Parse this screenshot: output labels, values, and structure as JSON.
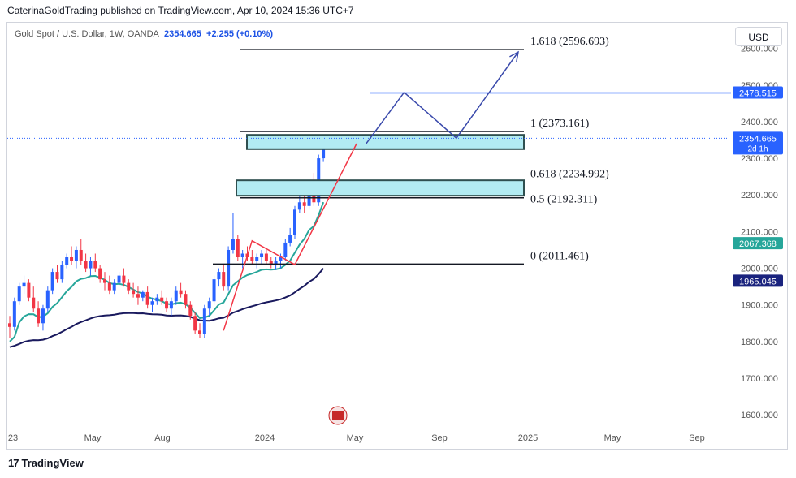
{
  "header": {
    "publisher_line": "CaterinaGoldTrading published on TradingView.com, Apr 10, 2024 15:36 UTC+7"
  },
  "legend": {
    "symbol": "Gold Spot / U.S. Dollar, 1W, OANDA",
    "price": "2354.665",
    "change": "+2.255 (+0.10%)"
  },
  "currency_button": "USD",
  "footer": {
    "brand": "TradingView",
    "logo_glyph": "17"
  },
  "colors": {
    "up": "#2962ff",
    "down": "#f23645",
    "ema_fast": "#26a69a",
    "ema_slow": "#1a1a5e",
    "fib_line": "#131722",
    "zone_fill": "#b2ebf2",
    "zone_border": "#2f4f4f",
    "projection": "#3949ab",
    "blue_level": "#2962ff",
    "impulse": "#f23645"
  },
  "chart_data": {
    "type": "candlestick",
    "y_axis": {
      "ticks": [
        1600,
        1700,
        1800,
        1900,
        2000,
        2100,
        2200,
        2300,
        2400,
        2500,
        2600
      ],
      "ylim": [
        1565,
        2670
      ],
      "tick_decimals": 3
    },
    "x_axis": {
      "labels": [
        "23",
        "May",
        "Aug",
        "2024",
        "May",
        "Sep",
        "2025",
        "May",
        "Sep"
      ]
    },
    "price_labels": [
      {
        "text": "2478.515",
        "value": 2478.515,
        "style": "blue"
      },
      {
        "text": "2354.665",
        "sub": "2d 1h",
        "value": 2354.665,
        "style": "blue"
      },
      {
        "text": "2067.368",
        "value": 2067.368,
        "style": "green"
      },
      {
        "text": "1965.045",
        "value": 1965.045,
        "style": "navy"
      }
    ],
    "fib_levels": [
      {
        "label": "1.618 (2596.693)",
        "value": 2596.693
      },
      {
        "label": "1 (2373.161)",
        "value": 2373.161
      },
      {
        "label": "0.618 (2234.992)",
        "value": 2234.992
      },
      {
        "label": "0.5 (2192.311)",
        "value": 2192.311
      },
      {
        "label": "0 (2011.461)",
        "value": 2011.461
      }
    ],
    "zones": [
      {
        "top": 2364,
        "bottom": 2325
      },
      {
        "top": 2240,
        "bottom": 2198
      }
    ],
    "horizontal_level": 2478.515,
    "current_price": 2354.665,
    "projection_path": [
      {
        "t": 75,
        "price": 2340
      },
      {
        "t": 83,
        "price": 2480
      },
      {
        "t": 94,
        "price": 2355
      },
      {
        "t": 107,
        "price": 2590
      }
    ],
    "impulse_path": [
      {
        "t": 45,
        "price": 1830
      },
      {
        "t": 51,
        "price": 2075
      },
      {
        "t": 60,
        "price": 2010
      },
      {
        "t": 73,
        "price": 2340
      }
    ],
    "candles": [
      [
        1850,
        1870,
        1810,
        1840
      ],
      [
        1840,
        1920,
        1830,
        1910
      ],
      [
        1910,
        1960,
        1900,
        1950
      ],
      [
        1950,
        1980,
        1930,
        1960
      ],
      [
        1960,
        1970,
        1910,
        1920
      ],
      [
        1920,
        1950,
        1880,
        1890
      ],
      [
        1890,
        1910,
        1840,
        1850
      ],
      [
        1850,
        1900,
        1830,
        1890
      ],
      [
        1890,
        1950,
        1880,
        1940
      ],
      [
        1940,
        2000,
        1930,
        1990
      ],
      [
        1990,
        2010,
        1960,
        1970
      ],
      [
        1970,
        2020,
        1960,
        2010
      ],
      [
        2010,
        2040,
        2000,
        2030
      ],
      [
        2030,
        2060,
        2010,
        2020
      ],
      [
        2020,
        2060,
        2000,
        2050
      ],
      [
        2050,
        2080,
        2010,
        2020
      ],
      [
        2020,
        2040,
        1990,
        2000
      ],
      [
        2000,
        2030,
        1980,
        2020
      ],
      [
        2020,
        2040,
        1990,
        2000
      ],
      [
        2000,
        2010,
        1960,
        1970
      ],
      [
        1970,
        1990,
        1940,
        1960
      ],
      [
        1960,
        1980,
        1930,
        1940
      ],
      [
        1940,
        1970,
        1930,
        1960
      ],
      [
        1960,
        1990,
        1950,
        1980
      ],
      [
        1980,
        2000,
        1950,
        1960
      ],
      [
        1960,
        1970,
        1930,
        1940
      ],
      [
        1940,
        1960,
        1920,
        1930
      ],
      [
        1930,
        1950,
        1900,
        1920
      ],
      [
        1920,
        1940,
        1910,
        1935
      ],
      [
        1935,
        1950,
        1890,
        1900
      ],
      [
        1900,
        1920,
        1880,
        1910
      ],
      [
        1910,
        1930,
        1900,
        1920
      ],
      [
        1920,
        1940,
        1900,
        1910
      ],
      [
        1910,
        1920,
        1880,
        1890
      ],
      [
        1890,
        1920,
        1870,
        1910
      ],
      [
        1910,
        1950,
        1900,
        1940
      ],
      [
        1940,
        1960,
        1920,
        1930
      ],
      [
        1930,
        1940,
        1890,
        1900
      ],
      [
        1900,
        1910,
        1860,
        1870
      ],
      [
        1870,
        1880,
        1820,
        1830
      ],
      [
        1830,
        1850,
        1810,
        1820
      ],
      [
        1820,
        1900,
        1810,
        1890
      ],
      [
        1890,
        1920,
        1870,
        1910
      ],
      [
        1910,
        1980,
        1900,
        1970
      ],
      [
        1970,
        2000,
        1950,
        1990
      ],
      [
        1990,
        2010,
        1940,
        1950
      ],
      [
        1950,
        2060,
        1940,
        2050
      ],
      [
        2050,
        2150,
        2040,
        2080
      ],
      [
        2080,
        2090,
        2020,
        2030
      ],
      [
        2030,
        2050,
        2000,
        2040
      ],
      [
        2040,
        2060,
        2020,
        2030
      ],
      [
        2030,
        2050,
        2010,
        2020
      ],
      [
        2020,
        2040,
        2000,
        2030
      ],
      [
        2030,
        2050,
        2010,
        2040
      ],
      [
        2040,
        2050,
        2010,
        2020
      ],
      [
        2020,
        2030,
        2000,
        2010
      ],
      [
        2010,
        2030,
        1995,
        2020
      ],
      [
        2020,
        2040,
        2000,
        2030
      ],
      [
        2030,
        2080,
        2020,
        2070
      ],
      [
        2070,
        2110,
        2060,
        2090
      ],
      [
        2090,
        2170,
        2080,
        2160
      ],
      [
        2160,
        2200,
        2150,
        2180
      ],
      [
        2180,
        2200,
        2150,
        2170
      ],
      [
        2170,
        2240,
        2160,
        2230
      ],
      [
        2230,
        2260,
        2170,
        2180
      ],
      [
        2180,
        2310,
        2170,
        2300
      ],
      [
        2300,
        2360,
        2290,
        2355
      ]
    ]
  }
}
